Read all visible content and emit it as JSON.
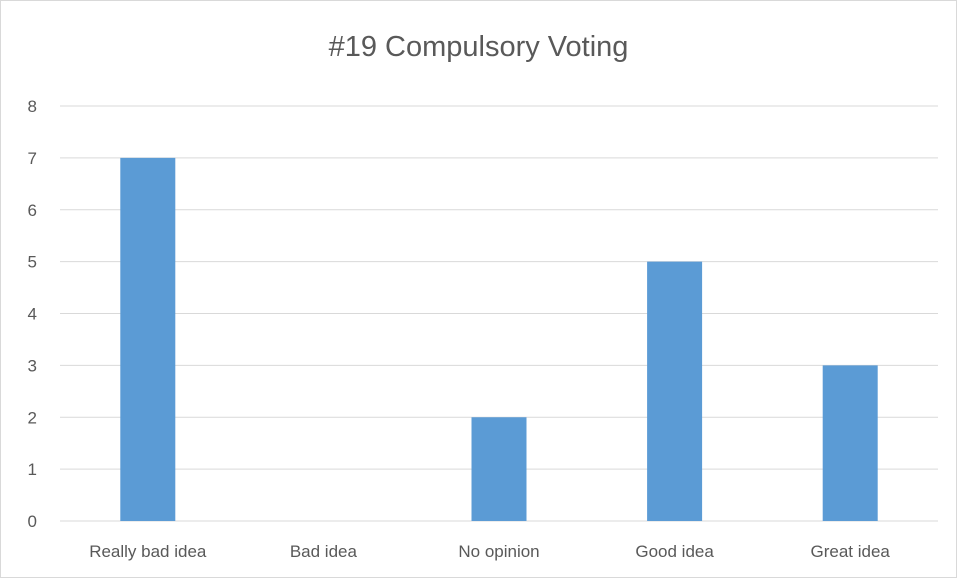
{
  "chart_data": {
    "type": "bar",
    "title": "#19 Compulsory Voting",
    "xlabel": "",
    "ylabel": "",
    "categories": [
      "Really bad idea",
      "Bad idea",
      "No opinion",
      "Good idea",
      "Great idea"
    ],
    "values": [
      7,
      0,
      2,
      5,
      3
    ],
    "ylim": [
      0,
      8
    ],
    "yticks": [
      "0",
      "1",
      "2",
      "3",
      "4",
      "5",
      "6",
      "7",
      "8"
    ],
    "grid": true,
    "legend": "none",
    "colors": {
      "bar": "#5b9bd5",
      "grid": "#d9d9d9",
      "text": "#595959"
    }
  }
}
